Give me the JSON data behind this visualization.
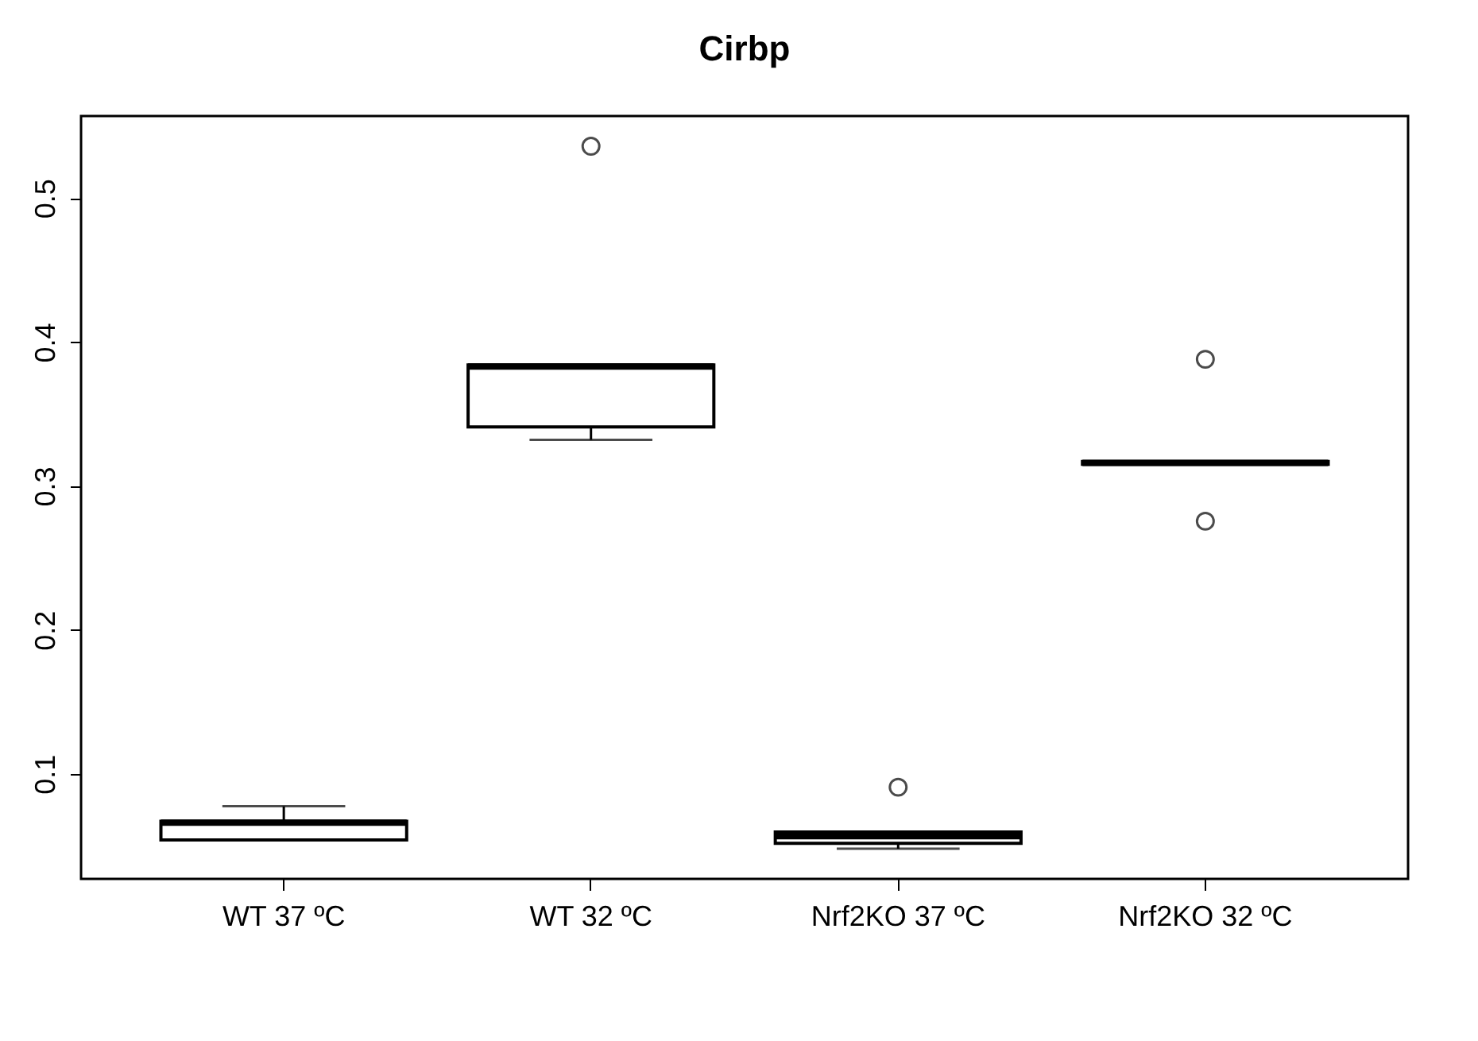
{
  "chart_data": {
    "type": "box",
    "title": "Cirbp",
    "categories": [
      "WT 37 ºC",
      "WT 32 ºC",
      "Nrf2KO 37 ºC",
      "Nrf2KO 32 ºC"
    ],
    "boxes": [
      {
        "low": 0.054,
        "q1": 0.054,
        "median": 0.066,
        "q3": 0.067,
        "high": 0.0775
      },
      {
        "low": 0.332,
        "q1": 0.341,
        "median": 0.383,
        "q3": 0.384,
        "high": 0.384,
        "outliers": [
          0.536
        ]
      },
      {
        "low": 0.048,
        "q1": 0.0517,
        "median": 0.0567,
        "q3": 0.0596,
        "high": 0.0596,
        "outliers": [
          0.0907
        ]
      },
      {
        "low": 0.315,
        "q1": 0.315,
        "median": 0.316,
        "q3": 0.317,
        "high": 0.317,
        "outliers": [
          0.388,
          0.2755
        ]
      }
    ],
    "ylim": [
      0.027,
      0.557
    ],
    "yticks": [
      0.1,
      0.2,
      0.3,
      0.4,
      0.5
    ],
    "grid": false
  }
}
